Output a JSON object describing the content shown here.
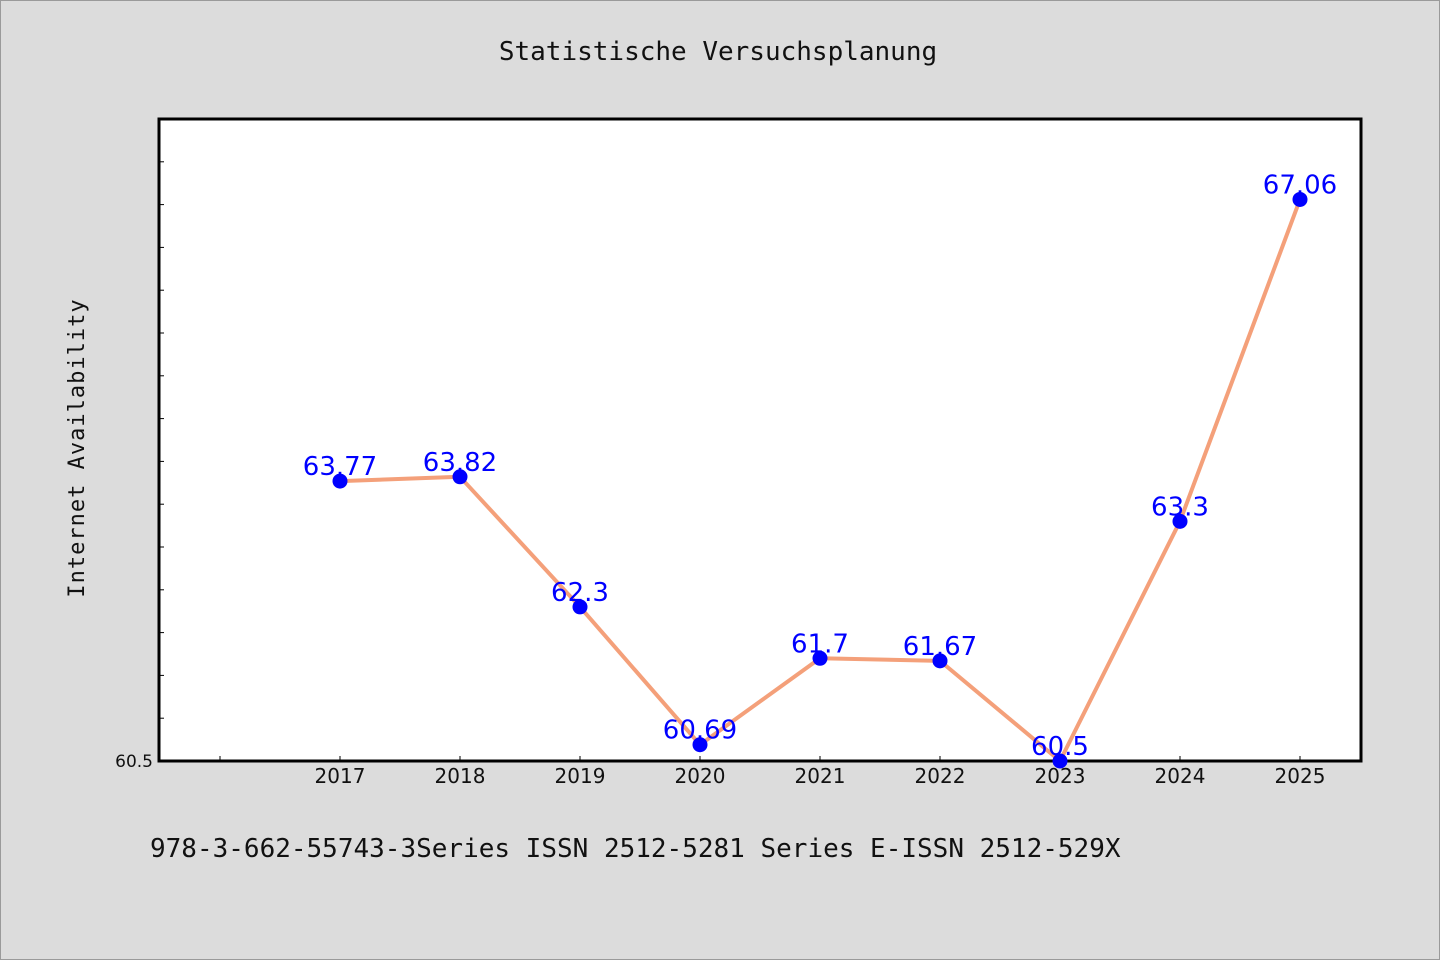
{
  "chart_data": {
    "type": "line",
    "title": "Statistische Versuchsplanung",
    "xlabel": "",
    "ylabel": "Internet Availability",
    "categories": [
      "2017",
      "2018",
      "2019",
      "2020",
      "2021",
      "2022",
      "2023",
      "2024",
      "2025"
    ],
    "series": [
      {
        "values": [
          63.77,
          63.82,
          62.3,
          60.69,
          61.7,
          61.67,
          60.5,
          63.3,
          67.06
        ],
        "data_labels": [
          "63.77",
          "63.82",
          "62.3",
          "60.69",
          "61.7",
          "61.67",
          "60.5",
          "63.3",
          "67.06"
        ],
        "line_color": "#f4a07a",
        "marker_color": "#0000ff"
      }
    ],
    "ylim": [
      60.5,
      68.0
    ],
    "yticks_labeled": [
      "60.5"
    ],
    "grid": false,
    "legend": "none",
    "label_color": "#0000ff"
  },
  "footnote": "978-3-662-55743-3Series ISSN 2512-5281 Series E-ISSN 2512-529X"
}
